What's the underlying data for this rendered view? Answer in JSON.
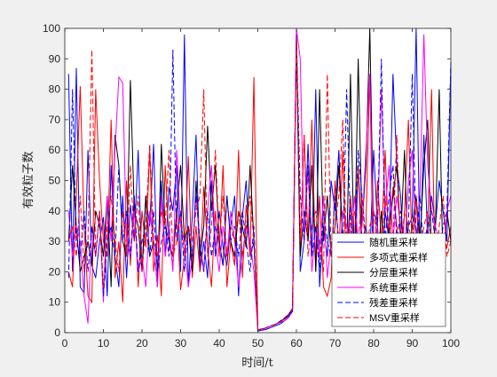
{
  "chart_data": {
    "type": "line",
    "title": "",
    "xlabel": "时间/t",
    "ylabel": "有效粒子数",
    "xlim": [
      0,
      100
    ],
    "ylim": [
      0,
      100
    ],
    "xticks": [
      0,
      10,
      20,
      30,
      40,
      50,
      60,
      70,
      80,
      90,
      100
    ],
    "yticks": [
      0,
      10,
      20,
      30,
      40,
      50,
      60,
      70,
      80,
      90,
      100
    ],
    "grid": false,
    "legend_position": "bottom-right",
    "x": [
      1,
      2,
      3,
      4,
      5,
      6,
      7,
      8,
      9,
      10,
      11,
      12,
      13,
      14,
      15,
      16,
      17,
      18,
      19,
      20,
      21,
      22,
      23,
      24,
      25,
      26,
      27,
      28,
      29,
      30,
      31,
      32,
      33,
      34,
      35,
      36,
      37,
      38,
      39,
      40,
      41,
      42,
      43,
      44,
      45,
      46,
      47,
      48,
      49,
      50,
      51,
      52,
      53,
      54,
      55,
      56,
      57,
      58,
      59,
      60,
      61,
      62,
      63,
      64,
      65,
      66,
      67,
      68,
      69,
      70,
      71,
      72,
      73,
      74,
      75,
      76,
      77,
      78,
      79,
      80,
      81,
      82,
      83,
      84,
      85,
      86,
      87,
      88,
      89,
      90,
      91,
      92,
      93,
      94,
      95,
      96,
      97,
      98,
      99,
      100
    ],
    "series": [
      {
        "name": "随机重采样",
        "color": "#0000ff",
        "style": "solid",
        "values": [
          85,
          20,
          87,
          15,
          13,
          60,
          22,
          18,
          30,
          38,
          12,
          55,
          25,
          15,
          45,
          18,
          42,
          30,
          60,
          20,
          45,
          35,
          62,
          18,
          50,
          25,
          48,
          40,
          55,
          20,
          98,
          15,
          38,
          65,
          20,
          30,
          18,
          50,
          25,
          40,
          28,
          22,
          35,
          45,
          12,
          38,
          50,
          25,
          30,
          0.5,
          0.8,
          1,
          1.5,
          2,
          2.5,
          3,
          4,
          5,
          8,
          97,
          20,
          30,
          62,
          25,
          80,
          15,
          35,
          25,
          50,
          40,
          60,
          30,
          25,
          45,
          15,
          55,
          30,
          35,
          25,
          60,
          35,
          15,
          40,
          30,
          85,
          55,
          45,
          20,
          35,
          38,
          100,
          25,
          65,
          30,
          45,
          35,
          50,
          40,
          30,
          88
        ]
      },
      {
        "name": "多项式重采样",
        "color": "#ff0000",
        "style": "solid",
        "values": [
          20,
          15,
          45,
          81,
          35,
          12,
          10,
          80,
          50,
          30,
          25,
          70,
          18,
          30,
          10,
          50,
          22,
          45,
          15,
          40,
          28,
          60,
          20,
          32,
          12,
          55,
          30,
          22,
          40,
          14,
          25,
          58,
          18,
          35,
          20,
          48,
          28,
          15,
          40,
          25,
          55,
          15,
          30,
          22,
          60,
          18,
          42,
          25,
          84,
          1,
          1,
          1.5,
          2,
          2.5,
          3,
          3.5,
          5,
          6,
          8,
          96,
          25,
          65,
          30,
          70,
          20,
          45,
          15,
          12,
          18,
          50,
          25,
          60,
          15,
          45,
          28,
          55,
          22,
          35,
          85,
          10,
          50,
          30,
          60,
          25,
          48,
          35,
          15,
          40,
          70,
          25,
          45,
          20,
          30,
          35,
          80,
          15,
          10,
          30,
          28,
          35
        ]
      },
      {
        "name": "分层重采样",
        "color": "#000000",
        "style": "solid",
        "values": [
          30,
          55,
          35,
          20,
          25,
          30,
          22,
          40,
          35,
          25,
          45,
          15,
          65,
          55,
          30,
          25,
          83,
          40,
          35,
          20,
          45,
          25,
          30,
          15,
          62,
          35,
          30,
          25,
          40,
          55,
          30,
          35,
          20,
          50,
          25,
          35,
          68,
          40,
          55,
          30,
          22,
          45,
          30,
          25,
          40,
          35,
          28,
          55,
          30,
          1,
          1.2,
          1.5,
          2,
          2.5,
          3,
          4,
          4.5,
          6,
          8,
          99,
          25,
          40,
          30,
          55,
          20,
          80,
          30,
          45,
          25,
          35,
          55,
          30,
          25,
          85,
          20,
          90,
          35,
          55,
          100,
          30,
          20,
          40,
          25,
          35,
          45,
          55,
          30,
          60,
          20,
          35,
          45,
          30,
          55,
          70,
          25,
          35,
          80,
          20,
          40,
          30
        ]
      },
      {
        "name": "系统重采样",
        "color": "#ff00ff",
        "style": "solid",
        "values": [
          40,
          25,
          35,
          30,
          12,
          3,
          35,
          25,
          40,
          10,
          45,
          30,
          60,
          84,
          82,
          30,
          25,
          40,
          20,
          25,
          15,
          40,
          30,
          15,
          45,
          25,
          35,
          20,
          60,
          35,
          30,
          15,
          25,
          45,
          30,
          20,
          40,
          55,
          30,
          20,
          35,
          25,
          40,
          30,
          15,
          25,
          35,
          30,
          20,
          1,
          1,
          1.5,
          2,
          2.5,
          3,
          3.5,
          4,
          5,
          7,
          100,
          90,
          30,
          55,
          20,
          35,
          25,
          45,
          18,
          30,
          25,
          20,
          40,
          35,
          25,
          45,
          30,
          35,
          60,
          85,
          25,
          35,
          80,
          40,
          55,
          30,
          45,
          35,
          25,
          50,
          60,
          30,
          45,
          98,
          55,
          40,
          35,
          30,
          25,
          40,
          45
        ]
      },
      {
        "name": "残差重采样",
        "color": "#0000ff",
        "style": "dashed",
        "values": [
          18,
          80,
          30,
          25,
          40,
          20,
          35,
          25,
          40,
          12,
          30,
          35,
          25,
          55,
          30,
          40,
          25,
          45,
          20,
          30,
          35,
          25,
          40,
          20,
          30,
          35,
          25,
          93,
          30,
          40,
          20,
          35,
          25,
          45,
          30,
          20,
          40,
          25,
          35,
          30,
          22,
          45,
          30,
          35,
          25,
          40,
          30,
          20,
          35,
          1,
          1,
          1.5,
          2,
          2.5,
          3,
          4,
          4.5,
          5.5,
          7,
          98,
          45,
          30,
          55,
          25,
          35,
          20,
          40,
          30,
          25,
          45,
          30,
          25,
          80,
          35,
          25,
          60,
          45,
          30,
          20,
          40,
          35,
          90,
          30,
          45,
          55,
          30,
          40,
          25,
          35,
          85,
          30,
          45,
          25,
          35,
          40,
          30,
          25,
          35,
          40,
          89
        ]
      },
      {
        "name": "MSV重采样",
        "color": "#ff0000",
        "style": "dashed",
        "values": [
          30,
          35,
          25,
          45,
          20,
          30,
          93,
          25,
          40,
          15,
          35,
          45,
          30,
          20,
          40,
          25,
          55,
          30,
          45,
          20,
          35,
          62,
          30,
          25,
          40,
          35,
          60,
          25,
          30,
          40,
          25,
          35,
          30,
          40,
          45,
          80,
          25,
          35,
          60,
          30,
          45,
          25,
          35,
          30,
          40,
          25,
          35,
          45,
          30,
          1,
          1,
          1.5,
          2,
          2.5,
          3,
          3.5,
          5,
          6,
          8,
          97,
          30,
          65,
          25,
          35,
          40,
          30,
          20,
          85,
          25,
          35,
          45,
          70,
          25,
          35,
          40,
          30,
          45,
          25,
          35,
          40,
          30,
          25,
          45,
          35,
          30,
          65,
          25,
          40,
          35,
          30,
          45,
          25,
          35,
          40,
          30,
          20,
          35,
          45,
          25,
          30
        ]
      }
    ]
  },
  "legend": {
    "items": [
      "随机重采样",
      "多项式重采样",
      "分层重采样",
      "系统重采样",
      "残差重采样",
      "MSV重采样"
    ]
  }
}
